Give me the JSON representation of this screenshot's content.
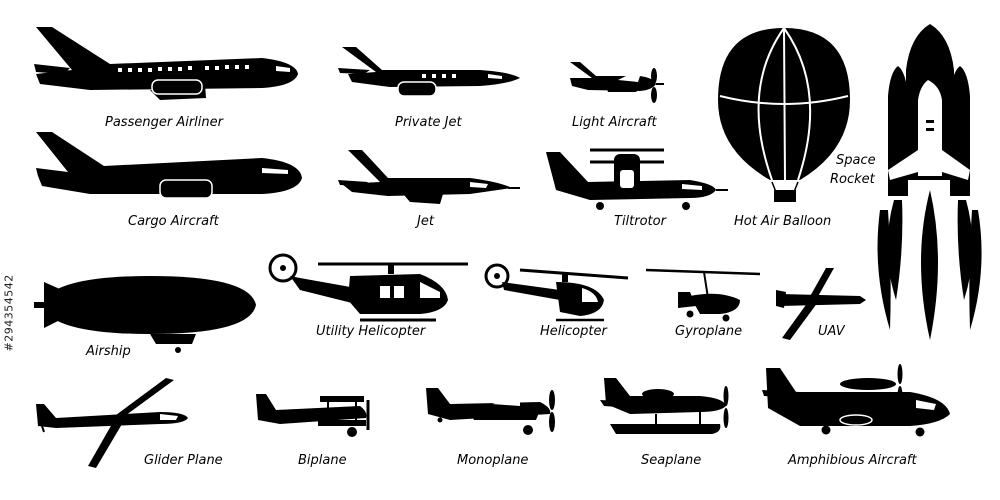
{
  "labels": {
    "passenger_airliner": "Passenger Airliner",
    "private_jet": "Private Jet",
    "light_aircraft": "Light Aircraft",
    "cargo_aircraft": "Cargo Aircraft",
    "jet": "Jet",
    "tiltrotor": "Tiltrotor",
    "hot_air_balloon": "Hot Air Balloon",
    "space": "Space",
    "rocket": "Rocket",
    "airship": "Airship",
    "utility_helicopter": "Utility Helicopter",
    "helicopter": "Helicopter",
    "gyroplane": "Gyroplane",
    "uav": "UAV",
    "glider_plane": "Glider Plane",
    "biplane": "Biplane",
    "monoplane": "Monoplane",
    "seaplane": "Seaplane",
    "amphibious_aircraft": "Amphibious Aircraft"
  },
  "side_id": "#294354542",
  "colors": {
    "ink": "#000000",
    "paper": "#ffffff"
  },
  "icons": [
    "passenger-airliner-icon",
    "private-jet-icon",
    "light-aircraft-icon",
    "hot-air-balloon-icon",
    "space-rocket-icon",
    "cargo-aircraft-icon",
    "jet-icon",
    "tiltrotor-icon",
    "airship-icon",
    "utility-helicopter-icon",
    "helicopter-icon",
    "gyroplane-icon",
    "uav-icon",
    "glider-plane-icon",
    "biplane-icon",
    "monoplane-icon",
    "seaplane-icon",
    "amphibious-aircraft-icon"
  ]
}
